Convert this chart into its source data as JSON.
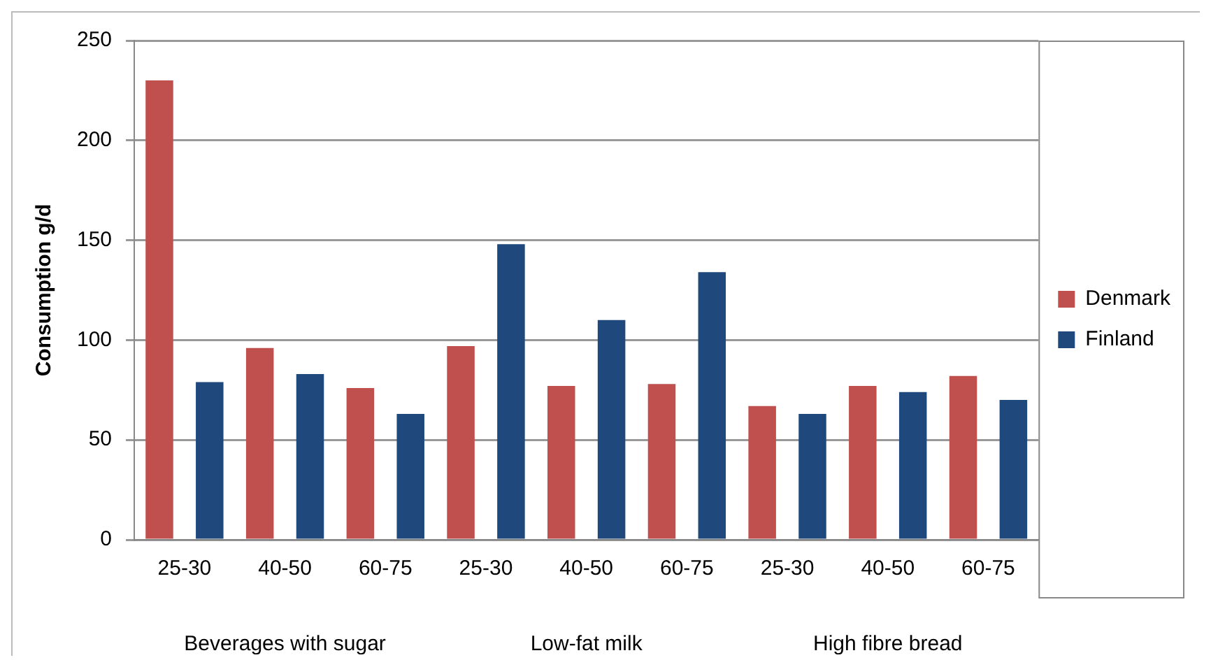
{
  "chart_data": {
    "type": "bar",
    "ylabel": "Consumption g/d",
    "categories": [
      "25-30",
      "40-50",
      "60-75",
      "25-30",
      "40-50",
      "60-75",
      "25-30",
      "40-50",
      "60-75"
    ],
    "series": [
      {
        "name": "Denmark",
        "color": "#c0504d",
        "values": [
          230,
          96,
          76,
          97,
          77,
          78,
          67,
          77,
          82
        ]
      },
      {
        "name": "Finland",
        "color": "#1f497d",
        "values": [
          79,
          83,
          63,
          148,
          110,
          134,
          63,
          74,
          70
        ]
      }
    ],
    "annotations": [
      "Beverages with sugar",
      "Low-fat milk",
      "High fibre bread"
    ],
    "ylim": [
      0,
      250
    ],
    "yticks": [
      0,
      50,
      100,
      150,
      200,
      250
    ],
    "grid": "y",
    "legend": "right"
  }
}
